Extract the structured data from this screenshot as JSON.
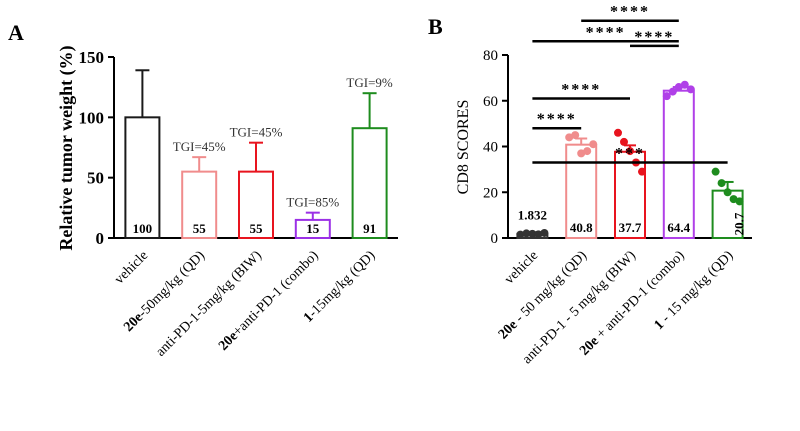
{
  "chart_data": [
    {
      "panel_label": "A",
      "type": "bar",
      "ylabel": "Relative tumor weight (%)",
      "ylim": [
        0,
        150
      ],
      "yticks": [
        "0",
        "50",
        "100",
        "150"
      ],
      "categories": [
        {
          "plain": "vehicle",
          "bold": "",
          "rest": ""
        },
        {
          "plain": "",
          "bold": "20e",
          "rest": "-50mg/kg (QD)"
        },
        {
          "plain": "anti-PD-1-5mg/kg (BIW)",
          "bold": "",
          "rest": ""
        },
        {
          "plain": "",
          "bold": "20e",
          "rest": "+anti-PD-1 (combo)"
        },
        {
          "plain": "",
          "bold": "1",
          "rest": "-15mg/kg (QD)"
        }
      ],
      "values": [
        100,
        55,
        55,
        15,
        91
      ],
      "error_upper": [
        139,
        67,
        79,
        21,
        120
      ],
      "value_labels": [
        "100",
        "55",
        "55",
        "15",
        "91"
      ],
      "annotations": [
        "",
        "TGI=45%",
        "TGI=45%",
        "TGI=85%",
        "TGI=9%"
      ],
      "colors": [
        "#1a1a1a",
        "#f08c8c",
        "#e8141e",
        "#9b30e6",
        "#1e8c1e"
      ]
    },
    {
      "panel_label": "B",
      "type": "bar",
      "ylabel": "CD8 SCORES",
      "ylim": [
        0,
        80
      ],
      "yticks": [
        "0",
        "20",
        "40",
        "60",
        "80"
      ],
      "categories": [
        {
          "plain": "vehicle",
          "bold": "",
          "rest": ""
        },
        {
          "plain": "",
          "bold": "20e",
          "rest": " - 50 mg/kg (QD)"
        },
        {
          "plain": "anti-PD-1 - 5 mg/kg (BIW)",
          "bold": "",
          "rest": ""
        },
        {
          "plain": "",
          "bold": "20e",
          "rest": " + anti-PD-1 (combo)"
        },
        {
          "plain": "",
          "bold": "1",
          "rest": " - 15 mg/kg (QD)"
        }
      ],
      "values": [
        1.832,
        40.8,
        37.7,
        64.4,
        20.7
      ],
      "value_labels": [
        "1.832",
        "40.8",
        "37.7",
        "64.4",
        "20.7"
      ],
      "error_upper": [
        2.5,
        43.5,
        40.5,
        66,
        24.5
      ],
      "points": [
        [
          1.5,
          2.0,
          1.8,
          1.6,
          2.2
        ],
        [
          44,
          45,
          37,
          38,
          41
        ],
        [
          46,
          42,
          38,
          33,
          29
        ],
        [
          62,
          64,
          66,
          67,
          65
        ],
        [
          29,
          24,
          20,
          17,
          16
        ]
      ],
      "colors": [
        "#333333",
        "#f08c8c",
        "#e8141e",
        "#b040e8",
        "#1e8c1e"
      ],
      "significance": [
        {
          "from": 1,
          "to": 3,
          "label": "****",
          "y": 95
        },
        {
          "from": 0,
          "to": 3,
          "label": "****",
          "y": 86
        },
        {
          "from": 2,
          "to": 3,
          "label": "****",
          "y": 84
        },
        {
          "from": 0,
          "to": 2,
          "label": "****",
          "y": 61
        },
        {
          "from": 0,
          "to": 1,
          "label": "****",
          "y": 48
        },
        {
          "from": 0,
          "to": 4,
          "label": "***",
          "y": 33
        }
      ]
    }
  ]
}
